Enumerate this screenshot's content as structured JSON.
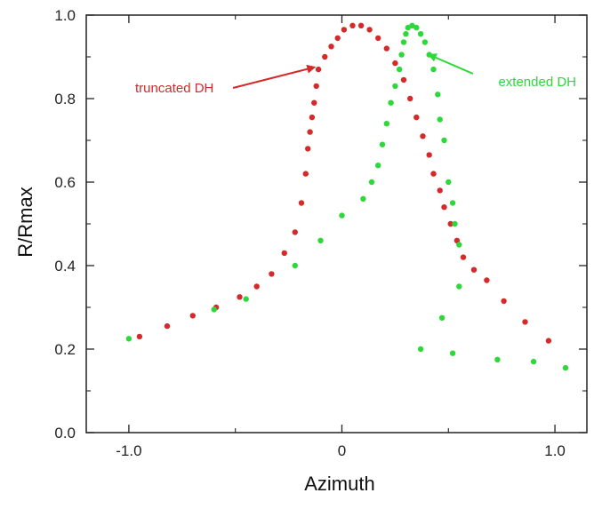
{
  "chart_data": {
    "type": "scatter",
    "xlabel": "Azimuth",
    "ylabel": "R/Rmax",
    "xlim": [
      -1.2,
      1.15
    ],
    "ylim": [
      0,
      1.0
    ],
    "x_ticks": [
      -1.0,
      0,
      1.0
    ],
    "x_tick_labels": [
      "-1.0",
      "0",
      "1.0"
    ],
    "y_ticks": [
      0.0,
      0.2,
      0.4,
      0.6,
      0.8,
      1.0
    ],
    "y_tick_labels": [
      "0.0",
      "0.2",
      "0.4",
      "0.6",
      "0.8",
      "1.0"
    ],
    "grid": false,
    "series": [
      {
        "name": "truncated DH",
        "color": "#d42a2a",
        "points": [
          [
            -0.95,
            0.23
          ],
          [
            -0.82,
            0.255
          ],
          [
            -0.7,
            0.28
          ],
          [
            -0.59,
            0.3
          ],
          [
            -0.48,
            0.325
          ],
          [
            -0.4,
            0.35
          ],
          [
            -0.33,
            0.38
          ],
          [
            -0.27,
            0.43
          ],
          [
            -0.22,
            0.48
          ],
          [
            -0.19,
            0.55
          ],
          [
            -0.17,
            0.62
          ],
          [
            -0.16,
            0.68
          ],
          [
            -0.15,
            0.72
          ],
          [
            -0.14,
            0.755
          ],
          [
            -0.13,
            0.79
          ],
          [
            -0.12,
            0.83
          ],
          [
            -0.11,
            0.87
          ],
          [
            -0.08,
            0.9
          ],
          [
            -0.05,
            0.925
          ],
          [
            -0.02,
            0.945
          ],
          [
            0.01,
            0.965
          ],
          [
            0.05,
            0.975
          ],
          [
            0.09,
            0.975
          ],
          [
            0.13,
            0.965
          ],
          [
            0.17,
            0.945
          ],
          [
            0.21,
            0.92
          ],
          [
            0.25,
            0.885
          ],
          [
            0.29,
            0.845
          ],
          [
            0.32,
            0.8
          ],
          [
            0.35,
            0.755
          ],
          [
            0.38,
            0.71
          ],
          [
            0.41,
            0.665
          ],
          [
            0.43,
            0.62
          ],
          [
            0.46,
            0.58
          ],
          [
            0.48,
            0.54
          ],
          [
            0.51,
            0.5
          ],
          [
            0.54,
            0.46
          ],
          [
            0.57,
            0.42
          ],
          [
            0.62,
            0.39
          ],
          [
            0.68,
            0.365
          ],
          [
            0.76,
            0.315
          ],
          [
            0.86,
            0.265
          ],
          [
            0.97,
            0.22
          ]
        ]
      },
      {
        "name": "extended DH",
        "color": "#2ed83a",
        "points": [
          [
            -1.0,
            0.225
          ],
          [
            -0.6,
            0.295
          ],
          [
            -0.45,
            0.32
          ],
          [
            -0.22,
            0.4
          ],
          [
            -0.1,
            0.46
          ],
          [
            0.0,
            0.52
          ],
          [
            0.1,
            0.56
          ],
          [
            0.14,
            0.6
          ],
          [
            0.17,
            0.64
          ],
          [
            0.19,
            0.69
          ],
          [
            0.21,
            0.74
          ],
          [
            0.23,
            0.79
          ],
          [
            0.25,
            0.83
          ],
          [
            0.27,
            0.87
          ],
          [
            0.28,
            0.905
          ],
          [
            0.29,
            0.935
          ],
          [
            0.3,
            0.955
          ],
          [
            0.31,
            0.97
          ],
          [
            0.33,
            0.975
          ],
          [
            0.35,
            0.97
          ],
          [
            0.37,
            0.955
          ],
          [
            0.39,
            0.935
          ],
          [
            0.41,
            0.905
          ],
          [
            0.43,
            0.87
          ],
          [
            0.45,
            0.81
          ],
          [
            0.46,
            0.75
          ],
          [
            0.48,
            0.7
          ],
          [
            0.5,
            0.6
          ],
          [
            0.52,
            0.55
          ],
          [
            0.53,
            0.5
          ],
          [
            0.55,
            0.45
          ],
          [
            0.55,
            0.35
          ],
          [
            0.47,
            0.275
          ],
          [
            0.37,
            0.2
          ],
          [
            0.52,
            0.19
          ],
          [
            0.73,
            0.175
          ],
          [
            0.9,
            0.17
          ],
          [
            1.05,
            0.155
          ]
        ]
      }
    ],
    "annotations": [
      {
        "text": "truncated DH",
        "color": "#d42a2a",
        "points_to": [
          -0.13,
          0.875
        ]
      },
      {
        "text": "extended DH",
        "color": "#2ed83a",
        "points_to": [
          0.41,
          0.905
        ]
      }
    ]
  }
}
